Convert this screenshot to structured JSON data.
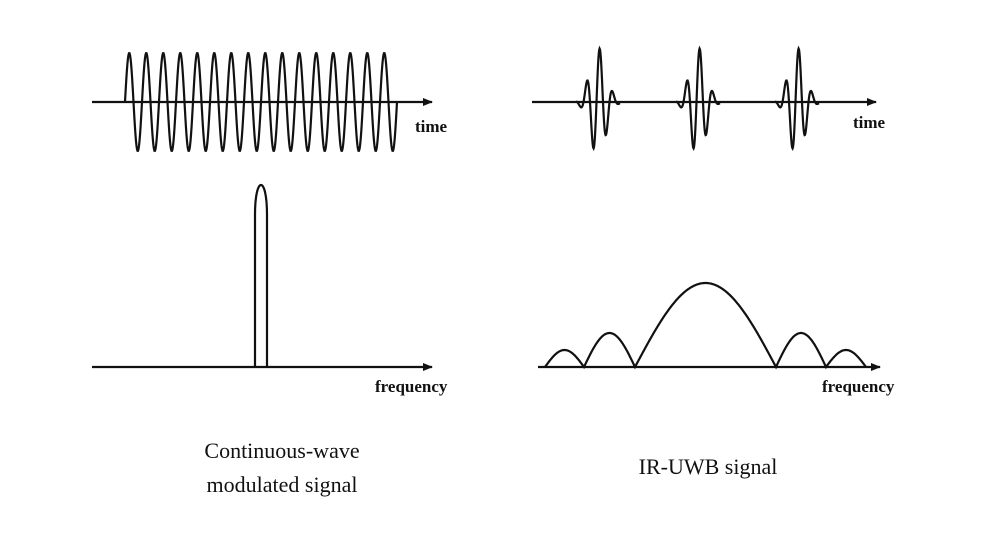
{
  "left_panel": {
    "time_axis_label": "time",
    "frequency_axis_label": "frequency",
    "caption_line1": "Continuous-wave",
    "caption_line2": "modulated signal"
  },
  "right_panel": {
    "time_axis_label": "time",
    "frequency_axis_label": "frequency",
    "caption": "IR-UWB signal"
  }
}
